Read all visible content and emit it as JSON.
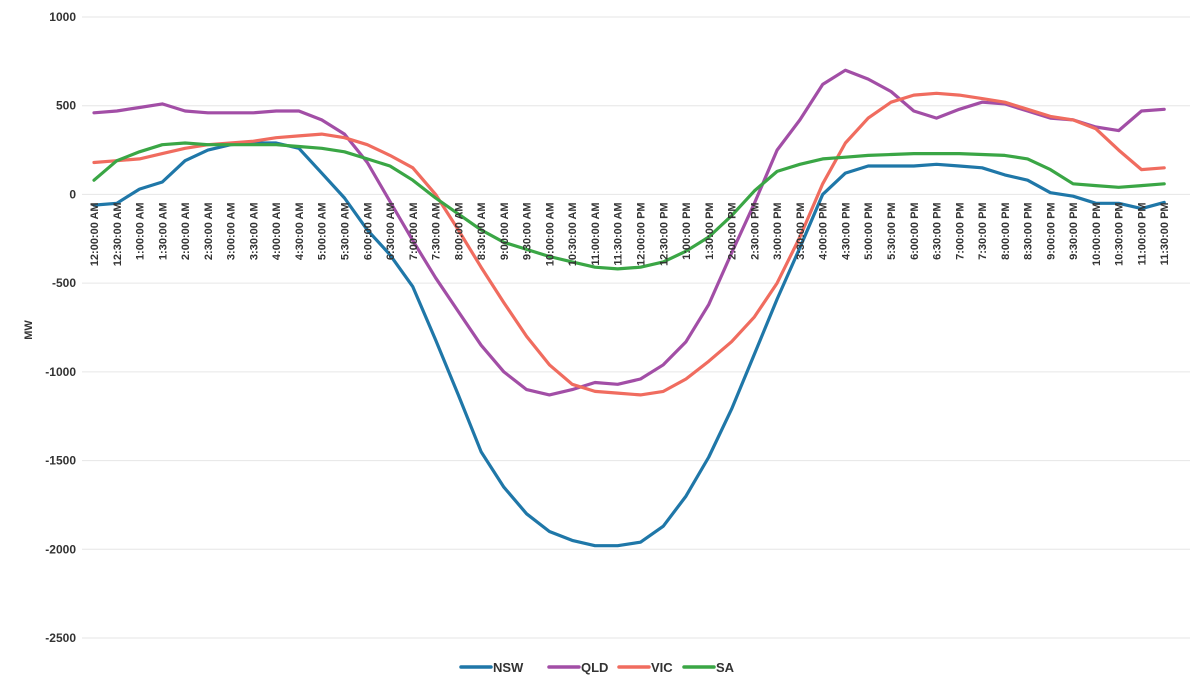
{
  "chart_data": {
    "type": "line",
    "title": "",
    "xlabel": "",
    "ylabel": "MW",
    "ylim": [
      -2500,
      1000
    ],
    "yticks": [
      1000,
      500,
      0,
      -500,
      -1000,
      -1500,
      -2000,
      -2500
    ],
    "grid": true,
    "legend_position": "bottom",
    "x": [
      "12:00:00 AM",
      "12:30:00 AM",
      "1:00:00 AM",
      "1:30:00 AM",
      "2:00:00 AM",
      "2:30:00 AM",
      "3:00:00 AM",
      "3:30:00 AM",
      "4:00:00 AM",
      "4:30:00 AM",
      "5:00:00 AM",
      "5:30:00 AM",
      "6:00:00 AM",
      "6:30:00 AM",
      "7:00:00 AM",
      "7:30:00 AM",
      "8:00:00 AM",
      "8:30:00 AM",
      "9:00:00 AM",
      "9:30:00 AM",
      "10:00:00 AM",
      "10:30:00 AM",
      "11:00:00 AM",
      "11:30:00 AM",
      "12:00:00 PM",
      "12:30:00 PM",
      "1:00:00 PM",
      "1:30:00 PM",
      "2:00:00 PM",
      "2:30:00 PM",
      "3:00:00 PM",
      "3:30:00 PM",
      "4:00:00 PM",
      "4:30:00 PM",
      "5:00:00 PM",
      "5:30:00 PM",
      "6:00:00 PM",
      "6:30:00 PM",
      "7:00:00 PM",
      "7:30:00 PM",
      "8:00:00 PM",
      "8:30:00 PM",
      "9:00:00 PM",
      "9:30:00 PM",
      "10:00:00 PM",
      "10:30:00 PM",
      "11:00:00 PM",
      "11:30:00 PM"
    ],
    "series": [
      {
        "name": "NSW",
        "color": "#1f77a8",
        "values": [
          -60,
          -50,
          30,
          70,
          190,
          250,
          280,
          290,
          290,
          260,
          120,
          -20,
          -200,
          -340,
          -520,
          -820,
          -1130,
          -1450,
          -1650,
          -1800,
          -1900,
          -1950,
          -1980,
          -1980,
          -1960,
          -1870,
          -1700,
          -1480,
          -1210,
          -900,
          -590,
          -300,
          0,
          120,
          160,
          160,
          160,
          170,
          160,
          150,
          110,
          80,
          10,
          -10,
          -50,
          -50,
          -80,
          -45
        ]
      },
      {
        "name": "QLD",
        "color": "#a24ea6",
        "values": [
          460,
          470,
          490,
          510,
          470,
          460,
          460,
          460,
          470,
          470,
          420,
          340,
          180,
          -40,
          -260,
          -470,
          -660,
          -850,
          -1000,
          -1100,
          -1130,
          -1100,
          -1060,
          -1070,
          -1040,
          -960,
          -830,
          -620,
          -330,
          -50,
          250,
          420,
          620,
          700,
          650,
          580,
          470,
          430,
          480,
          520,
          510,
          470,
          430,
          420,
          380,
          360,
          470,
          480
        ]
      },
      {
        "name": "VIC",
        "color": "#f06c5f",
        "values": [
          180,
          190,
          200,
          230,
          260,
          280,
          290,
          300,
          320,
          330,
          340,
          320,
          280,
          220,
          150,
          0,
          -200,
          -410,
          -610,
          -800,
          -960,
          -1070,
          -1110,
          -1120,
          -1130,
          -1110,
          -1040,
          -940,
          -830,
          -690,
          -500,
          -240,
          60,
          290,
          430,
          520,
          560,
          570,
          560,
          540,
          520,
          480,
          440,
          420,
          370,
          250,
          140,
          150
        ]
      },
      {
        "name": "SA",
        "color": "#3aa645",
        "values": [
          80,
          190,
          240,
          280,
          290,
          280,
          280,
          280,
          280,
          270,
          260,
          240,
          200,
          160,
          80,
          -20,
          -110,
          -200,
          -270,
          -310,
          -350,
          -380,
          -410,
          -420,
          -410,
          -380,
          -320,
          -240,
          -120,
          20,
          130,
          170,
          200,
          210,
          220,
          225,
          230,
          230,
          230,
          225,
          220,
          200,
          140,
          60,
          50,
          40,
          50,
          60
        ]
      }
    ]
  }
}
